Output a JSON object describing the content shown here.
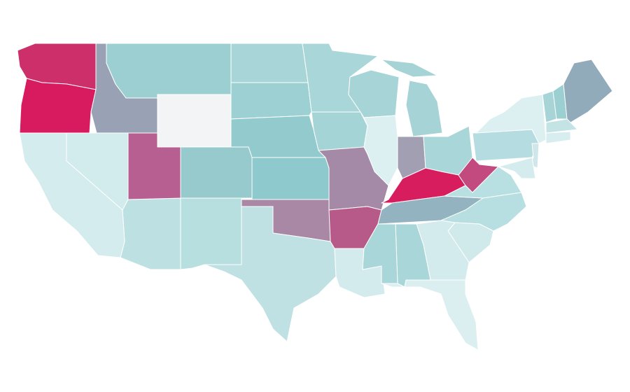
{
  "map": {
    "fills": [
      "#cc2f6a",
      "#d81b5f",
      "#99a2b4",
      "#9ccfd1",
      "#f3f4f5",
      "#a8d6d8",
      "#9cd0d2",
      "#93cacd",
      "#96cacd",
      "#8ecacd",
      "#a888a4",
      "#bfe1e3",
      "#b8dfe0",
      "#bde0e2",
      "#b85f92",
      "#d2ebec",
      "#d4ecee",
      "#a9d6d9",
      "#a5d4d6",
      "#a48aa6",
      "#b85a89",
      "#d4ebed",
      "#a6d4d7",
      "#dcf0f1",
      "#a6d3d6",
      "#a29fb3",
      "#a9d6d8",
      "#d81d5e",
      "#92b3bf",
      "#c24a7f",
      "#b8dfe1",
      "#b7dee0",
      "#d0eaec",
      "#d3ebec",
      "#a9d6d8",
      "#a9d6d8",
      "#dbeff1",
      "#b5dce0",
      "#dcf0f2",
      "#cfe7ea",
      "#d5ecee",
      "#a6d4d7",
      "#9ccfd2",
      "#92abba",
      "#c4e3e5",
      "#d8edef"
    ]
  }
}
